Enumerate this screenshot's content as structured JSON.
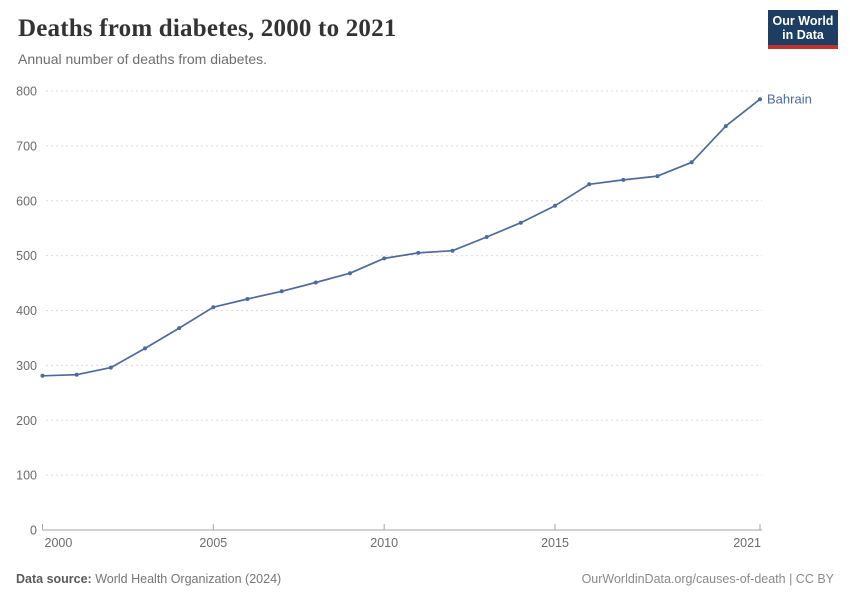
{
  "header": {
    "title": "Deaths from diabetes, 2000 to 2021",
    "subtitle": "Annual number of deaths from diabetes."
  },
  "logo": {
    "line1": "Our World",
    "line2": "in Data",
    "bg_color": "#1d3d63",
    "accent_color": "#c0322b",
    "text_color": "#ffffff"
  },
  "chart_data": {
    "type": "line",
    "title": "Deaths from diabetes, 2000 to 2021",
    "subtitle": "Annual number of deaths from diabetes.",
    "series": [
      {
        "name": "Bahrain",
        "values": [
          281,
          283,
          296,
          331,
          368,
          406,
          421,
          435,
          451,
          468,
          495,
          505,
          509,
          534,
          560,
          591,
          630,
          638,
          645,
          670,
          736,
          785
        ]
      }
    ],
    "x": [
      2000,
      2001,
      2002,
      2003,
      2004,
      2005,
      2006,
      2007,
      2008,
      2009,
      2010,
      2011,
      2012,
      2013,
      2014,
      2015,
      2016,
      2017,
      2018,
      2019,
      2020,
      2021
    ],
    "xlabel": "",
    "ylabel": "",
    "ylim": [
      0,
      800
    ],
    "yticks": [
      0,
      100,
      200,
      300,
      400,
      500,
      600,
      700,
      800
    ],
    "xticks": [
      2000,
      2005,
      2010,
      2015,
      2021
    ],
    "grid": "horizontal-dashed",
    "legend_position": "end-of-line",
    "line_color": "#4C6A9C",
    "entity_label_color": "#4C6A9C",
    "grid_color": "#dcdcdc",
    "axis_color": "#a5a5a5",
    "tick_label_color": "#6c6c6c"
  },
  "footer": {
    "source_label": "Data source:",
    "source_value": "World Health Organization (2024)",
    "link": "OurWorldinData.org/causes-of-death | CC BY"
  }
}
